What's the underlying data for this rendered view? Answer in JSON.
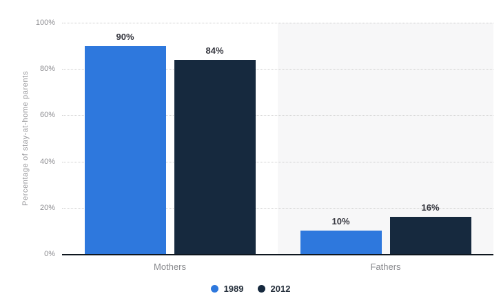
{
  "chart_data": {
    "type": "bar",
    "ylabel": "Percentage of stay-at-home parents",
    "categories": [
      "Mothers",
      "Fathers"
    ],
    "series": [
      {
        "name": "1989",
        "color": "#2e78dd",
        "values": [
          90,
          10
        ],
        "value_labels": [
          "90%",
          "10%"
        ]
      },
      {
        "name": "2012",
        "color": "#16293e",
        "values": [
          84,
          16
        ],
        "value_labels": [
          "84%",
          "16%"
        ]
      }
    ],
    "ylim": [
      0,
      100
    ],
    "yticks": [
      {
        "value": 0,
        "label": "0%"
      },
      {
        "value": 20,
        "label": "20%"
      },
      {
        "value": 40,
        "label": "40%"
      },
      {
        "value": 60,
        "label": "60%"
      },
      {
        "value": 80,
        "label": "80%"
      },
      {
        "value": 100,
        "label": "100%"
      }
    ],
    "grid": "horizontal-dotted",
    "legend_position": "bottom-center",
    "alt_column_highlight": "Fathers"
  },
  "colors": {
    "series_1989": "#2e78dd",
    "series_2012": "#16293e",
    "alt_column_bg": "#f7f7f8",
    "axis_line": "#0e161e",
    "gridline": "#cbcbcb",
    "tick_text": "#8e8e92",
    "category_text": "#87888c",
    "value_text": "#35363e",
    "legend_text": "#27313d",
    "background": "#ffffff"
  }
}
